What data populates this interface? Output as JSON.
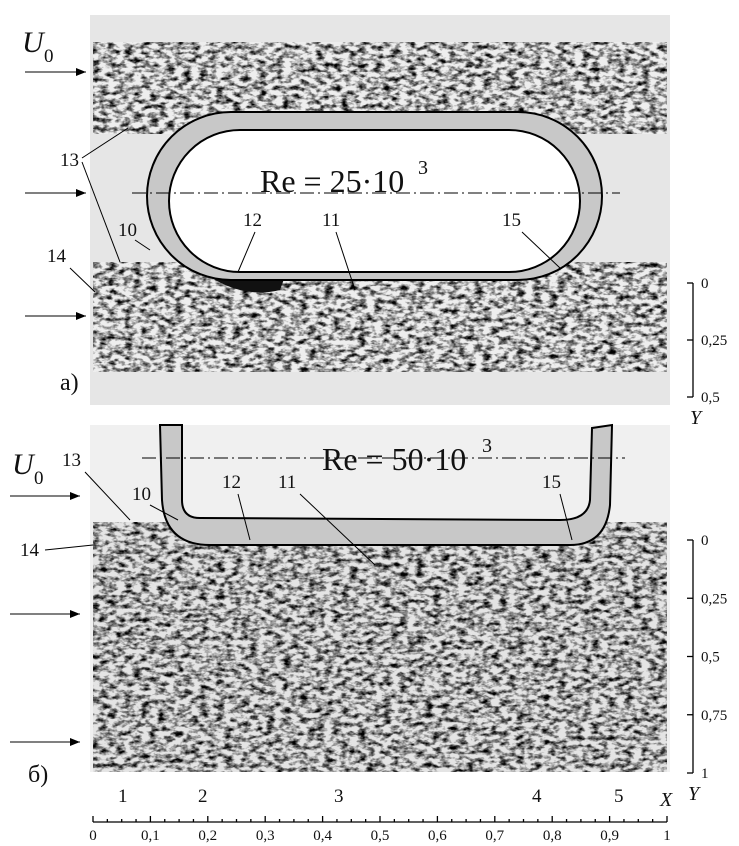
{
  "panel_a": {
    "label": "а)",
    "inflow": {
      "symbol": "U",
      "subscript": "0"
    },
    "reynolds": {
      "text": "Re = 25·10",
      "exponent": "3"
    },
    "callouts": [
      "13",
      "10",
      "14",
      "12",
      "11",
      "15"
    ],
    "y_axis": {
      "label": "Y",
      "ticks": [
        0,
        {
          "value": 0.25,
          "label": "0,25"
        },
        {
          "value": 0.5,
          "label": "0,5"
        }
      ]
    }
  },
  "panel_b": {
    "label": "б)",
    "inflow": {
      "symbol": "U",
      "subscript": "0"
    },
    "reynolds": {
      "text": "Re = 50·10",
      "exponent": "3"
    },
    "callouts": [
      "13",
      "10",
      "14",
      "12",
      "11",
      "15"
    ],
    "points": [
      "1",
      "2",
      "3",
      "4",
      "5"
    ],
    "y_axis": {
      "label": "Y",
      "ticks": [
        0,
        {
          "value": 0.25,
          "label": "0,25"
        },
        {
          "value": 0.5,
          "label": "0,5"
        },
        {
          "value": 0.75,
          "label": "0,75"
        },
        1
      ]
    }
  },
  "x_axis": {
    "label": "X",
    "ticks": [
      0,
      {
        "value": 0.1,
        "label": "0,1"
      },
      {
        "value": 0.2,
        "label": "0,2"
      },
      {
        "value": 0.3,
        "label": "0,3"
      },
      {
        "value": 0.4,
        "label": "0,4"
      },
      {
        "value": 0.5,
        "label": "0,5"
      },
      {
        "value": 0.6,
        "label": "0,6"
      },
      {
        "value": 0.7,
        "label": "0,7"
      },
      {
        "value": 0.8,
        "label": "0,8"
      },
      {
        "value": 0.9,
        "label": "0,9"
      },
      1
    ]
  }
}
